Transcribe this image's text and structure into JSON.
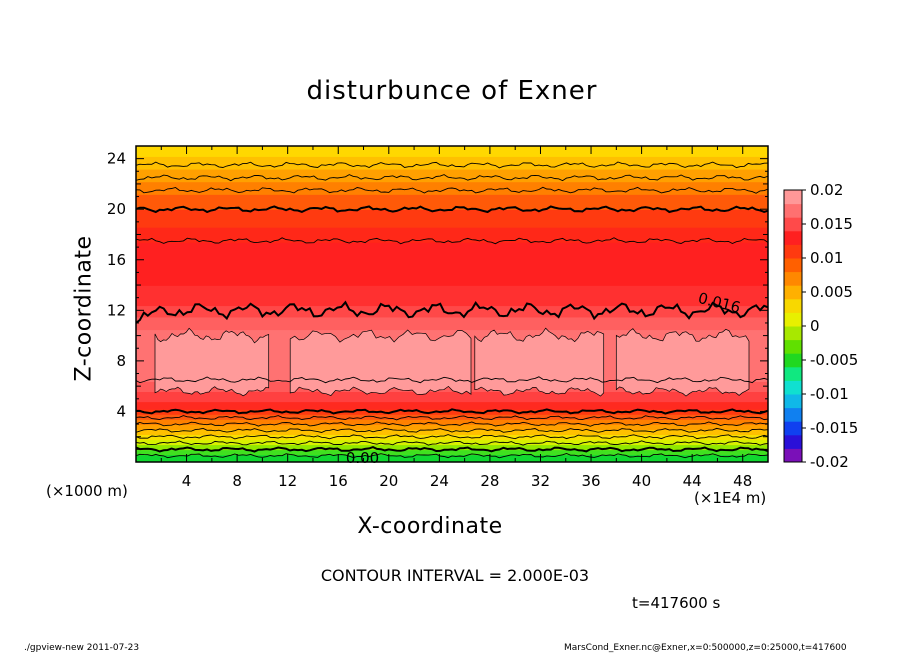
{
  "chart_data": {
    "type": "heatmap",
    "title": "disturbunce of Exner",
    "xlabel": "X-coordinate",
    "ylabel": "Z-coordinate",
    "x_unit_note": "(×1000 m)",
    "x_scale_note": "(×1E4 m)",
    "xlim": [
      0,
      50
    ],
    "ylim": [
      0,
      25
    ],
    "x_ticks": [
      4,
      8,
      12,
      16,
      20,
      24,
      28,
      32,
      36,
      40,
      44,
      48
    ],
    "y_ticks": [
      4,
      8,
      12,
      16,
      20,
      24
    ],
    "colorbar": {
      "ticks": [
        "0.02",
        "0.015",
        "0.01",
        "0.005",
        "0",
        "-0.005",
        "-0.01",
        "-0.015",
        "-0.02"
      ],
      "range": [
        -0.02,
        0.02
      ],
      "colors": [
        "#7a10b8",
        "#2a10d8",
        "#1040f0",
        "#1080f0",
        "#10b8e8",
        "#10e0d0",
        "#10e880",
        "#20d820",
        "#60e000",
        "#a8e800",
        "#e8f000",
        "#f8d800",
        "#ffb000",
        "#ff8800",
        "#ff6000",
        "#ff3a10",
        "#ff2020",
        "#ff4a4a",
        "#ff7070",
        "#ff9898"
      ]
    },
    "contour_levels_z": [
      0.5,
      1,
      1.5,
      2,
      2.5,
      3,
      3.5,
      4,
      6.5,
      12,
      17.5,
      20,
      21.5,
      22.5,
      23.5
    ],
    "contour_labels": [
      {
        "text": "0.016",
        "x": 44.5,
        "y": 13.0
      },
      {
        "text": "0.00",
        "x": 16.6,
        "y": 0.3
      }
    ],
    "contour_interval": "CONTOUR INTERVAL = 2.000E-03",
    "time": "t=417600 s"
  },
  "footer": {
    "left": "./gpview-new   2011-07-23",
    "right": "MarsCond_Exner.nc@Exner,x=0:500000,z=0:25000,t=417600"
  }
}
